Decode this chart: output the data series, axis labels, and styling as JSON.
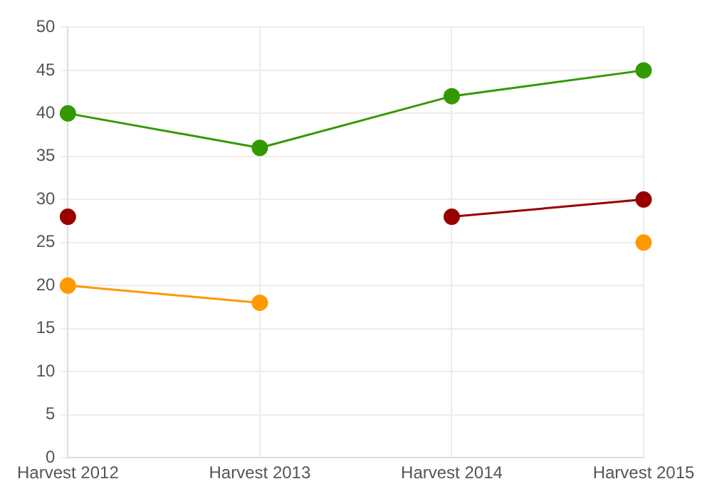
{
  "chart_data": {
    "type": "line",
    "categories": [
      "Harvest 2012",
      "Harvest 2013",
      "Harvest 2014",
      "Harvest 2015"
    ],
    "series": [
      {
        "color": "#339900",
        "values": [
          40,
          36,
          42,
          45
        ]
      },
      {
        "color": "#990000",
        "values": [
          28,
          null,
          28,
          30
        ]
      },
      {
        "color": "#ff9900",
        "values": [
          20,
          18,
          null,
          25
        ]
      }
    ],
    "ylim": [
      0,
      50
    ],
    "yticks": [
      0,
      5,
      10,
      15,
      20,
      25,
      30,
      35,
      40,
      45,
      50
    ],
    "grid": true,
    "marker": "circle",
    "line_style": "solid",
    "legend": false
  }
}
